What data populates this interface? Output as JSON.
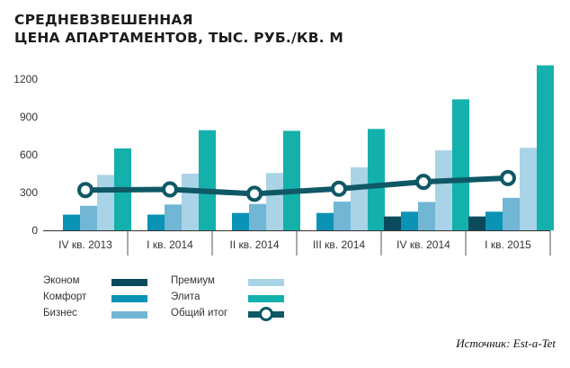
{
  "title": {
    "line1": "СРЕДНЕВЗВЕШЕННАЯ",
    "line2": "ЦЕНА АПАРТАМЕНТОВ, ТЫС. РУБ./КВ. М"
  },
  "source": "Источник: Est-a-Tet",
  "chart_data": {
    "type": "bar",
    "title": "СРЕДНЕВЗВЕШЕННАЯ ЦЕНА АПАРТАМЕНТОВ, ТЫС. РУБ./КВ. М",
    "categories": [
      "IV кв. 2013",
      "I кв. 2014",
      "II кв. 2014",
      "III кв. 2014",
      "IV кв. 2014",
      "I кв. 2015"
    ],
    "ylim": [
      0,
      1350
    ],
    "yticks": [
      0,
      300,
      600,
      900,
      1200
    ],
    "grid": false,
    "legend_position": "bottom",
    "series": [
      {
        "name": "Эконом",
        "kind": "bar",
        "color": "#0b4a5c",
        "values": [
          null,
          null,
          null,
          null,
          110,
          110
        ]
      },
      {
        "name": "Комфорт",
        "kind": "bar",
        "color": "#0a93b4",
        "values": [
          125,
          125,
          138,
          138,
          148,
          148
        ]
      },
      {
        "name": "Бизнес",
        "kind": "bar",
        "color": "#71b6d4",
        "values": [
          195,
          205,
          210,
          228,
          225,
          258
        ]
      },
      {
        "name": "Премиум",
        "kind": "bar",
        "color": "#a9d3e6",
        "values": [
          440,
          450,
          455,
          500,
          635,
          655
        ]
      },
      {
        "name": "Элита",
        "kind": "bar",
        "color": "#14b0ac",
        "values": [
          650,
          795,
          790,
          805,
          1040,
          1310
        ]
      },
      {
        "name": "Общий итог",
        "kind": "line",
        "color": "#0f5866",
        "values": [
          320,
          325,
          290,
          330,
          385,
          415
        ]
      }
    ]
  }
}
